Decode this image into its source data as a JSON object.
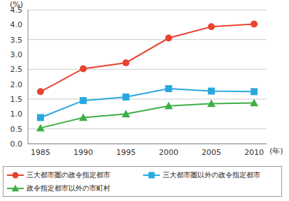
{
  "chart_data": {
    "type": "line",
    "y_label": "(%)",
    "x_label": "(年)",
    "categories": [
      "1985",
      "1990",
      "1995",
      "2000",
      "2005",
      "2010"
    ],
    "series": [
      {
        "name": "三大都市圏の政令指定都市",
        "color": "#e8432f",
        "marker": "circle",
        "values": [
          1.75,
          2.52,
          2.72,
          3.55,
          3.93,
          4.02
        ]
      },
      {
        "name": "三大都市圏以外の政令指定都市",
        "color": "#29a8e0",
        "marker": "square",
        "values": [
          0.88,
          1.45,
          1.57,
          1.85,
          1.77,
          1.75
        ]
      },
      {
        "name": "政令指定都市以外の市町村",
        "color": "#3fae49",
        "marker": "triangle",
        "values": [
          0.53,
          0.88,
          1.0,
          1.27,
          1.35,
          1.37
        ]
      }
    ],
    "ylim": [
      0,
      4.5
    ],
    "yticks": [
      {
        "value": 0,
        "label": "0.0"
      },
      {
        "value": 0.5,
        "label": "0.5"
      },
      {
        "value": 1,
        "label": "1.0"
      },
      {
        "value": 1.5,
        "label": "1.5"
      },
      {
        "value": 2,
        "label": "2.0"
      },
      {
        "value": 2.5,
        "label": "2.5"
      },
      {
        "value": 3,
        "label": "3.0"
      },
      {
        "value": 3.5,
        "label": "3.5"
      },
      {
        "value": 4,
        "label": "4.0"
      },
      {
        "value": 4.5,
        "label": "4.5"
      }
    ],
    "grid": true,
    "legend": "bottom"
  }
}
